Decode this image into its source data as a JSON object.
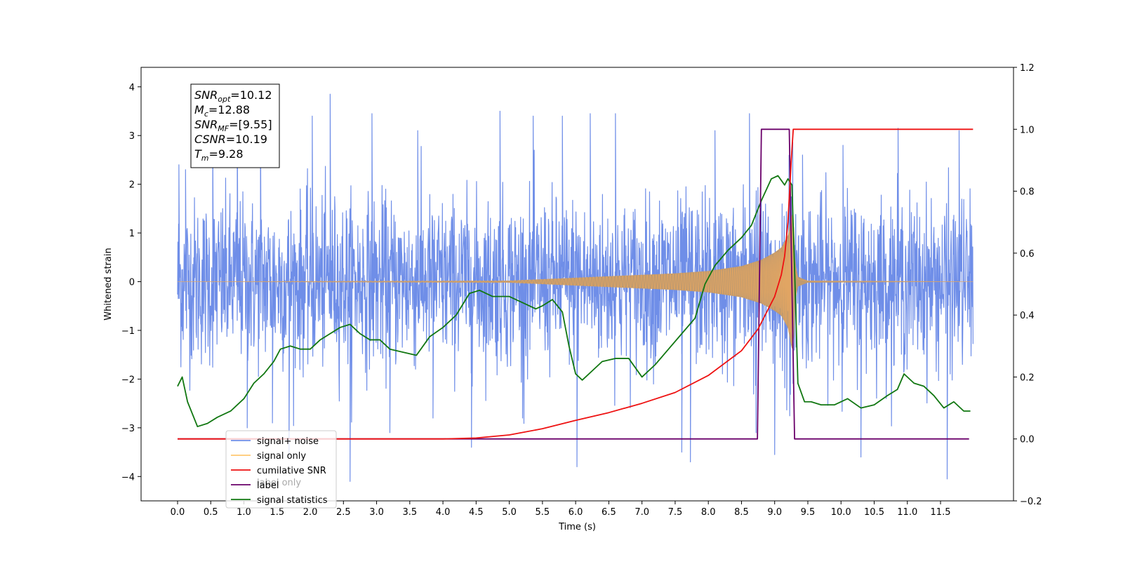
{
  "chart_data": {
    "type": "line",
    "xlabel": "Time (s)",
    "ylabel": "Whitened strain",
    "y2label": "",
    "xlim": [
      -0.55,
      12.6
    ],
    "ylim": [
      -4.5,
      4.4
    ],
    "y2lim": [
      -0.2,
      1.2
    ],
    "xticks": [
      "0.0",
      "0.5",
      "1.0",
      "1.5",
      "2.0",
      "2.5",
      "3.0",
      "3.5",
      "4.0",
      "4.5",
      "5.0",
      "5.5",
      "6.0",
      "6.5",
      "7.0",
      "7.5",
      "8.0",
      "8.5",
      "9.0",
      "9.5",
      "10.0",
      "10.5",
      "11.0",
      "11.5"
    ],
    "yticks": [
      "−4",
      "−3",
      "−2",
      "−1",
      "0",
      "1",
      "2",
      "3",
      "4"
    ],
    "y2ticks": [
      "−0.2",
      "0.0",
      "0.2",
      "0.4",
      "0.6",
      "0.8",
      "1.0",
      "1.2"
    ],
    "grid": false,
    "legend_position": "lower-left",
    "info_box": {
      "lines": [
        {
          "main": "SNR",
          "sub": "opt",
          "rest": "=10.12"
        },
        {
          "main": "M",
          "sub": "c",
          "rest": "=12.88"
        },
        {
          "main": "SNR",
          "sub": "MF",
          "rest": "=[9.55]"
        },
        {
          "main": "CSNR",
          "sub": "",
          "rest": "=10.19"
        },
        {
          "main": "T",
          "sub": "m",
          "rest": "=9.28"
        }
      ]
    },
    "series": [
      {
        "name": "signal+ noise",
        "color": "#6f8ee8",
        "axis": "left",
        "description_values": "dense noisy waveform, x 0.0–11.99 s, whitened strain mostly within about ±2.5, peaks up to about +3.8 and down to about −4.1",
        "noise_sigma": 0.85,
        "spikes": [
          [
            0.02,
            2.4
          ],
          [
            0.12,
            2.3
          ],
          [
            0.53,
            3.0
          ],
          [
            0.9,
            3.4
          ],
          [
            1.05,
            -3.0
          ],
          [
            1.25,
            3.3
          ],
          [
            1.68,
            -3.6
          ],
          [
            2.03,
            3.4
          ],
          [
            2.3,
            3.85
          ],
          [
            2.6,
            -4.1
          ],
          [
            2.93,
            3.45
          ],
          [
            3.2,
            -3.1
          ],
          [
            3.62,
            3.1
          ],
          [
            4.43,
            -3.4
          ],
          [
            4.86,
            3.5
          ],
          [
            5.36,
            3.4
          ],
          [
            5.8,
            3.4
          ],
          [
            6.02,
            -3.8
          ],
          [
            6.22,
            3.45
          ],
          [
            6.6,
            3.45
          ],
          [
            7.6,
            -3.5
          ],
          [
            7.73,
            -3.7
          ],
          [
            8.1,
            3.1
          ],
          [
            8.62,
            3.45
          ],
          [
            8.72,
            -3.1
          ],
          [
            9.0,
            -3.55
          ],
          [
            10.3,
            -3.6
          ],
          [
            10.86,
            3.15
          ],
          [
            11.6,
            -4.05
          ],
          [
            11.78,
            3.1
          ],
          [
            10.03,
            2.8
          ],
          [
            9.42,
            2.6
          ],
          [
            3.85,
            -2.8
          ],
          [
            1.43,
            -2.9
          ],
          [
            5.2,
            -2.8
          ]
        ]
      },
      {
        "name": "signal only",
        "color": "#e8a860",
        "fill": "#c09a6e",
        "axis": "left",
        "description_values": "chirp waveform near 0 until about 6 s, amplitude growing to about ±1.4 at merger (~9.28 s), then ringdown to 0",
        "envelope": [
          [
            0.0,
            0.0
          ],
          [
            5.0,
            0.02
          ],
          [
            5.5,
            0.05
          ],
          [
            6.0,
            0.08
          ],
          [
            6.5,
            0.11
          ],
          [
            7.0,
            0.14
          ],
          [
            7.5,
            0.17
          ],
          [
            8.0,
            0.22
          ],
          [
            8.5,
            0.32
          ],
          [
            8.8,
            0.45
          ],
          [
            9.0,
            0.6
          ],
          [
            9.1,
            0.7
          ],
          [
            9.2,
            0.95
          ],
          [
            9.26,
            1.4
          ],
          [
            9.29,
            1.2
          ],
          [
            9.31,
            0.4
          ],
          [
            9.35,
            0.1
          ],
          [
            9.5,
            0.02
          ],
          [
            12.0,
            0.0
          ]
        ]
      },
      {
        "name": "cumilative SNR",
        "color": "#ee1111",
        "axis": "right",
        "x": [
          0.0,
          4.0,
          4.5,
          5.0,
          5.5,
          6.0,
          6.5,
          7.0,
          7.5,
          8.0,
          8.5,
          8.75,
          9.0,
          9.1,
          9.15,
          9.2,
          9.25,
          9.28,
          9.3,
          11.99
        ],
        "values": [
          0.0,
          0.0,
          0.003,
          0.013,
          0.033,
          0.06,
          0.085,
          0.115,
          0.15,
          0.205,
          0.285,
          0.355,
          0.46,
          0.53,
          0.59,
          0.7,
          0.9,
          1.0,
          1.0,
          1.0
        ]
      },
      {
        "name": "label",
        "color": "#6a006a",
        "axis": "right",
        "x": [
          0.0,
          8.74,
          8.8,
          9.22,
          9.3,
          11.93
        ],
        "values": [
          0.0,
          0.0,
          1.0,
          1.0,
          0.0,
          0.0
        ]
      },
      {
        "name": "label only",
        "color": "#6a006a",
        "axis": "right",
        "hidden": true,
        "x": [],
        "values": []
      },
      {
        "name": "signal statistics",
        "color": "#117711",
        "axis": "right",
        "x": [
          0.0,
          0.07,
          0.15,
          0.3,
          0.45,
          0.6,
          0.8,
          1.0,
          1.15,
          1.3,
          1.45,
          1.55,
          1.7,
          1.85,
          2.0,
          2.15,
          2.3,
          2.45,
          2.6,
          2.75,
          2.9,
          3.05,
          3.2,
          3.4,
          3.6,
          3.8,
          4.0,
          4.2,
          4.4,
          4.55,
          4.75,
          4.9,
          5.0,
          5.2,
          5.4,
          5.5,
          5.65,
          5.8,
          5.9,
          6.0,
          6.1,
          6.25,
          6.4,
          6.6,
          6.8,
          7.0,
          7.2,
          7.4,
          7.6,
          7.8,
          7.95,
          8.1,
          8.3,
          8.5,
          8.65,
          8.8,
          8.95,
          9.05,
          9.15,
          9.2,
          9.26,
          9.3,
          9.35,
          9.45,
          9.55,
          9.7,
          9.9,
          10.1,
          10.3,
          10.5,
          10.7,
          10.85,
          10.95,
          11.1,
          11.25,
          11.4,
          11.55,
          11.7,
          11.85,
          11.95
        ],
        "values": [
          0.17,
          0.2,
          0.12,
          0.04,
          0.05,
          0.07,
          0.09,
          0.13,
          0.18,
          0.21,
          0.25,
          0.29,
          0.3,
          0.29,
          0.29,
          0.32,
          0.34,
          0.36,
          0.37,
          0.34,
          0.32,
          0.32,
          0.29,
          0.28,
          0.27,
          0.33,
          0.36,
          0.4,
          0.47,
          0.48,
          0.46,
          0.46,
          0.46,
          0.44,
          0.42,
          0.43,
          0.45,
          0.41,
          0.3,
          0.21,
          0.19,
          0.22,
          0.25,
          0.26,
          0.26,
          0.2,
          0.24,
          0.29,
          0.34,
          0.39,
          0.5,
          0.56,
          0.61,
          0.65,
          0.69,
          0.77,
          0.84,
          0.85,
          0.82,
          0.84,
          0.82,
          0.55,
          0.18,
          0.12,
          0.12,
          0.11,
          0.11,
          0.13,
          0.1,
          0.11,
          0.14,
          0.16,
          0.21,
          0.18,
          0.17,
          0.14,
          0.1,
          0.12,
          0.09,
          0.09
        ]
      }
    ]
  }
}
